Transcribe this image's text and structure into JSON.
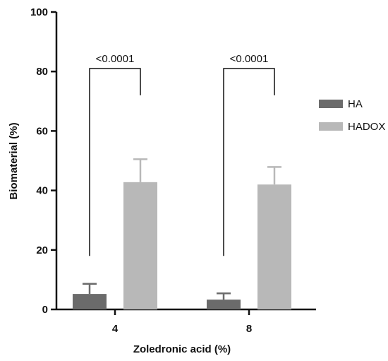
{
  "chart_data": {
    "type": "bar",
    "categories": [
      "4",
      "8"
    ],
    "series": [
      {
        "name": "HA",
        "values": [
          5.2,
          3.3
        ],
        "errors": [
          3.4,
          2.1
        ],
        "color": "#6b6b6b"
      },
      {
        "name": "HADOX",
        "values": [
          42.8,
          42.0
        ],
        "errors": [
          7.7,
          5.9
        ],
        "color": "#b8b8b8"
      }
    ],
    "xlabel": "Zoledronic acid (%)",
    "ylabel": "Biomaterial (%)",
    "ylim": [
      0,
      100
    ],
    "yticks": [
      "0",
      "20",
      "40",
      "60",
      "80",
      "100"
    ],
    "legend_position": "right",
    "annotations": [
      {
        "category": "4",
        "text": "<0.0001",
        "from_value": 18,
        "to_value": 72,
        "top_value": 81
      },
      {
        "category": "8",
        "text": "<0.0001",
        "from_value": 18,
        "to_value": 72,
        "top_value": 81
      }
    ],
    "grid": false
  }
}
